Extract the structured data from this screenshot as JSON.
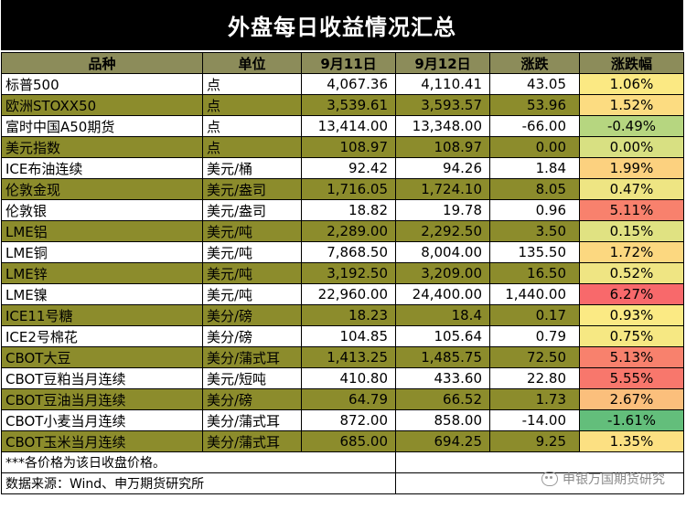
{
  "title": "外盘每日收益情况汇总",
  "headers": [
    "品种",
    "单位",
    "9月11日",
    "9月12日",
    "涨跌",
    "涨跌幅"
  ],
  "rows": [
    {
      "name": "标普500",
      "unit": "点",
      "d1": "4,067.36",
      "d2": "4,110.41",
      "chg": "43.05",
      "pct": "1.06%",
      "pct_color": "#fbe983"
    },
    {
      "name": "欧洲STOXX50",
      "unit": "点",
      "d1": "3,539.61",
      "d2": "3,593.57",
      "chg": "53.96",
      "pct": "1.52%",
      "pct_color": "#fcdc81"
    },
    {
      "name": "富时中国A50期货",
      "unit": "点",
      "d1": "13,414.00",
      "d2": "13,348.00",
      "chg": "-66.00",
      "pct": "-0.49%",
      "pct_color": "#b6d680"
    },
    {
      "name": "美元指数",
      "unit": "点",
      "d1": "108.97",
      "d2": "108.97",
      "chg": "0.00",
      "pct": "0.00%",
      "pct_color": "#d8e082"
    },
    {
      "name": "ICE布油连续",
      "unit": "美元/桶",
      "d1": "92.42",
      "d2": "94.26",
      "chg": "1.84",
      "pct": "1.99%",
      "pct_color": "#fcd17f"
    },
    {
      "name": "伦敦金现",
      "unit": "美元/盎司",
      "d1": "1,716.05",
      "d2": "1,724.10",
      "chg": "8.05",
      "pct": "0.47%",
      "pct_color": "#eee583"
    },
    {
      "name": "伦敦银",
      "unit": "美元/盎司",
      "d1": "18.82",
      "d2": "19.78",
      "chg": "0.96",
      "pct": "5.11%",
      "pct_color": "#f8816d"
    },
    {
      "name": "LME铝",
      "unit": "美元/吨",
      "d1": "2,289.00",
      "d2": "2,292.50",
      "chg": "3.50",
      "pct": "0.15%",
      "pct_color": "#e0e282"
    },
    {
      "name": "LME铜",
      "unit": "美元/吨",
      "d1": "7,868.50",
      "d2": "8,004.00",
      "chg": "135.50",
      "pct": "1.72%",
      "pct_color": "#fcd880"
    },
    {
      "name": "LME锌",
      "unit": "美元/吨",
      "d1": "3,192.50",
      "d2": "3,209.00",
      "chg": "16.50",
      "pct": "0.52%",
      "pct_color": "#efe583"
    },
    {
      "name": "LME镍",
      "unit": "美元/吨",
      "d1": "22,960.00",
      "d2": "24,400.00",
      "chg": "1,440.00",
      "pct": "6.27%",
      "pct_color": "#f8696b"
    },
    {
      "name": "ICE11号糖",
      "unit": "美分/磅",
      "d1": "18.23",
      "d2": "18.4",
      "chg": "0.17",
      "pct": "0.93%",
      "pct_color": "#fbea84"
    },
    {
      "name": "ICE2号棉花",
      "unit": "美分/磅",
      "d1": "104.85",
      "d2": "105.64",
      "chg": "0.79",
      "pct": "0.75%",
      "pct_color": "#f6e883"
    },
    {
      "name": "CBOT大豆",
      "unit": "美分/蒲式耳",
      "d1": "1,413.25",
      "d2": "1,485.75",
      "chg": "72.50",
      "pct": "5.13%",
      "pct_color": "#f8816d"
    },
    {
      "name": "CBOT豆粕当月连续",
      "unit": "美元/短吨",
      "d1": "410.80",
      "d2": "433.60",
      "chg": "22.80",
      "pct": "5.55%",
      "pct_color": "#f8776c"
    },
    {
      "name": "CBOT豆油当月连续",
      "unit": "美分/磅",
      "d1": "64.79",
      "d2": "66.52",
      "chg": "1.73",
      "pct": "2.67%",
      "pct_color": "#fbbf7c"
    },
    {
      "name": "CBOT小麦当月连续",
      "unit": "美分/蒲式耳",
      "d1": "872.00",
      "d2": "858.00",
      "chg": "-14.00",
      "pct": "-1.61%",
      "pct_color": "#63be7b"
    },
    {
      "name": "CBOT玉米当月连续",
      "unit": "美分/蒲式耳",
      "d1": "685.00",
      "d2": "694.25",
      "chg": "9.25",
      "pct": "1.35%",
      "pct_color": "#fce082"
    }
  ],
  "footnotes": [
    "***各价格为该日收盘价格。",
    "数据来源：Wind、申万期货研究所"
  ],
  "watermark": "申银万国期货研究"
}
